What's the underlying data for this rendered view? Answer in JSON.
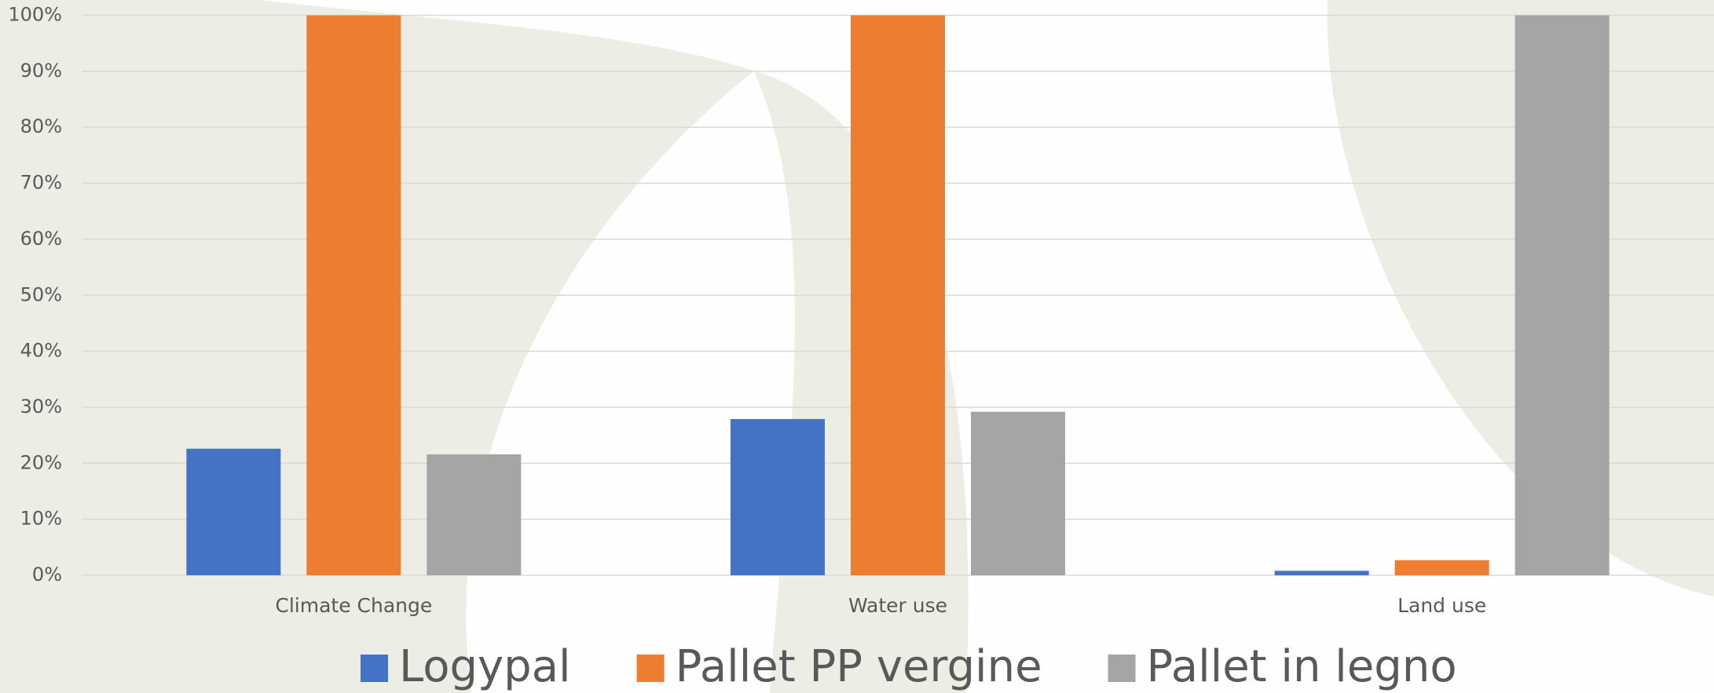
{
  "chart_data": {
    "type": "bar",
    "categories": [
      "Climate Change",
      "Water use",
      "Land use"
    ],
    "series": [
      {
        "name": "Logypal",
        "color": "#4472c4",
        "values": [
          22.6,
          27.9,
          0.8
        ]
      },
      {
        "name": "Pallet PP vergine",
        "color": "#ed7d31",
        "values": [
          100,
          100,
          2.7
        ]
      },
      {
        "name": "Pallet in legno",
        "color": "#a5a5a5",
        "values": [
          21.6,
          29.2,
          100
        ]
      }
    ],
    "ylim": [
      0,
      100
    ],
    "yticks": [
      {
        "value": 0,
        "label": "0%"
      },
      {
        "value": 10,
        "label": "10%"
      },
      {
        "value": 20,
        "label": "20%"
      },
      {
        "value": 30,
        "label": "30%"
      },
      {
        "value": 40,
        "label": "40%"
      },
      {
        "value": 50,
        "label": "50%"
      },
      {
        "value": 60,
        "label": "60%"
      },
      {
        "value": 70,
        "label": "70%"
      },
      {
        "value": 80,
        "label": "80%"
      },
      {
        "value": 90,
        "label": "90%"
      },
      {
        "value": 100,
        "label": "100%"
      }
    ],
    "grid": true,
    "legend": "bottom"
  }
}
